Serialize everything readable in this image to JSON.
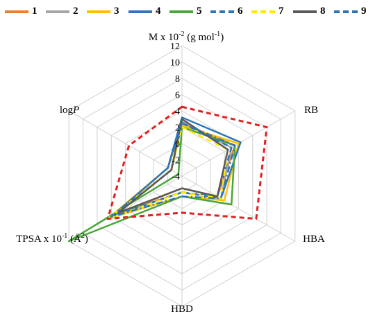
{
  "chart_data": {
    "type": "radar",
    "axes": [
      {
        "key": "M",
        "label_main": "M x 10",
        "label_sup1": "-2",
        "label_mid": " (g mol",
        "label_sup2": "-1",
        "label_end": ")"
      },
      {
        "key": "RB",
        "label_main": "RB"
      },
      {
        "key": "HBA",
        "label_main": "HBA"
      },
      {
        "key": "HBD",
        "label_main": "HBD"
      },
      {
        "key": "TPSA",
        "label_main": "TPSA x 10",
        "label_sup1": "-1",
        "label_mid": " (Å",
        "label_sup2": "2",
        "label_end": ")"
      },
      {
        "key": "logP",
        "label_main": "log",
        "label_italic": "P"
      }
    ],
    "range": [
      -4,
      12
    ],
    "ticks": [
      -4,
      -2,
      0,
      2,
      4,
      6,
      8,
      10,
      12
    ],
    "grid": true,
    "legend_position": "top",
    "series": [
      {
        "name": "1",
        "color": "#ed7d31",
        "dash": "solid",
        "values": [
          2.5,
          3.5,
          1.0,
          -2.5,
          6.0,
          -2.5
        ]
      },
      {
        "name": "2",
        "color": "#a5a5a5",
        "dash": "solid",
        "values": [
          2.7,
          3.0,
          1.5,
          -2.0,
          5.5,
          -2.5
        ]
      },
      {
        "name": "3",
        "color": "#ffc000",
        "dash": "solid",
        "values": [
          2.2,
          4.0,
          2.0,
          -1.5,
          6.5,
          -2.0
        ]
      },
      {
        "name": "4",
        "color": "#2e75b6",
        "dash": "solid",
        "values": [
          3.2,
          4.3,
          1.5,
          -2.0,
          6.0,
          -2.0
        ]
      },
      {
        "name": "5",
        "color": "#4aa63a",
        "dash": "solid",
        "values": [
          2.0,
          3.5,
          3.0,
          -1.5,
          12.0,
          -3.5
        ]
      },
      {
        "name": "6",
        "color": "#2e75b6",
        "dash": "dashed",
        "values": [
          2.5,
          3.0,
          1.0,
          -2.0,
          5.5,
          -2.5
        ]
      },
      {
        "name": "7",
        "color": "#ffea00",
        "dash": "dashed",
        "values": [
          2.0,
          2.5,
          1.5,
          -2.0,
          6.5,
          -2.5
        ]
      },
      {
        "name": "8",
        "color": "#595959",
        "dash": "solid",
        "values": [
          3.0,
          2.5,
          1.0,
          -2.5,
          5.0,
          -2.5
        ]
      },
      {
        "name": "9",
        "color": "#2e75b6",
        "dash": "dashdot",
        "values": [
          2.5,
          3.5,
          1.5,
          -1.5,
          6.0,
          -2.0
        ]
      }
    ],
    "reference": {
      "color": "#e02020",
      "dash": "dashed",
      "values": [
        4.5,
        8.0,
        6.5,
        0.5,
        6.5,
        3.5
      ]
    }
  }
}
